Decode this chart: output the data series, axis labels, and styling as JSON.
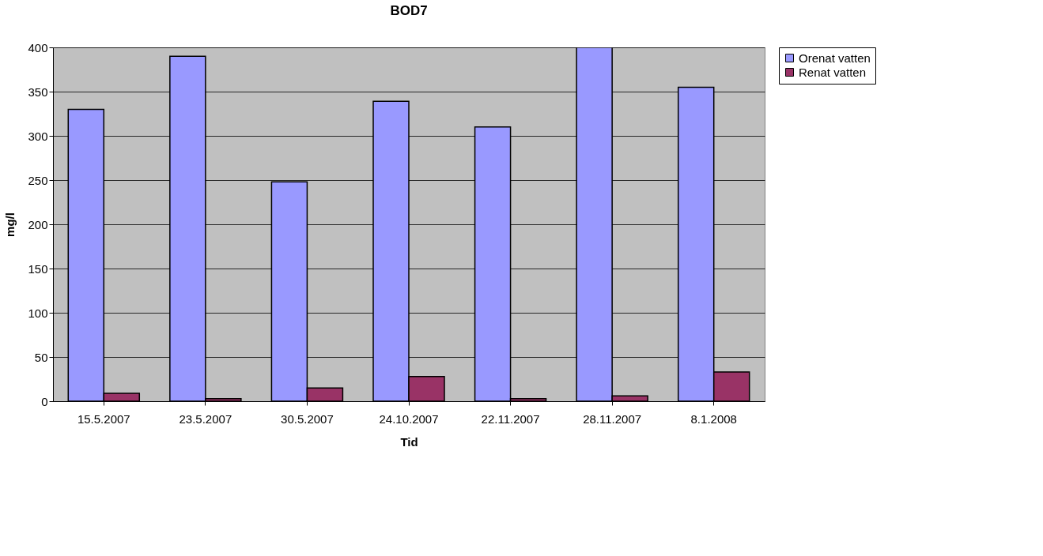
{
  "chart_data": {
    "type": "bar",
    "title": "BOD7",
    "xlabel": "Tid",
    "ylabel": "mg/l",
    "categories": [
      "15.5.2007",
      "23.5.2007",
      "30.5.2007",
      "24.10.2007",
      "22.11.2007",
      "28.11.2007",
      "8.1.2008"
    ],
    "series": [
      {
        "name": "Orenat vatten",
        "color": "#9999ff",
        "values": [
          330,
          390,
          248,
          339,
          310,
          400,
          355
        ]
      },
      {
        "name": "Renat vatten",
        "color": "#993366",
        "values": [
          9,
          3,
          15,
          28,
          3,
          6,
          33
        ]
      }
    ],
    "ylim": [
      0,
      400
    ],
    "yticks": [
      0,
      50,
      100,
      150,
      200,
      250,
      300,
      350,
      400
    ],
    "grid": "y",
    "legend": "right"
  }
}
